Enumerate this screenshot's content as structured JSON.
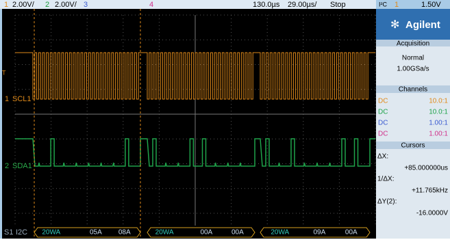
{
  "top_bar": {
    "ch1_number": "1",
    "ch1_scale": "2.00V/",
    "ch2_number": "2",
    "ch2_scale": "2.00V/",
    "ch3_number": "3",
    "ch4_number": "4",
    "time_delay": "130.0µs",
    "time_scale": "29.00µs/",
    "run_state": "Stop",
    "trigger_source": "I²C",
    "trigger_channel": "1",
    "trigger_level": "1.50V"
  },
  "screen": {
    "trigger_marker": "T",
    "scl_number": "1",
    "scl_label": "SCL1",
    "sda_number": "2",
    "sda_label": "SDA1",
    "serial_label": "S1",
    "protocol": "I2C",
    "packets": [
      [
        "20WA",
        "05A",
        "08A"
      ],
      [
        "20WA",
        "00A",
        "00A"
      ],
      [
        "20WA",
        "09A",
        "00A"
      ]
    ]
  },
  "side_panel": {
    "brand": "Agilent",
    "acquisition": {
      "title": "Acquisition",
      "mode": "Normal",
      "rate": "1.00GSa/s"
    },
    "channels": {
      "title": "Channels",
      "rows": [
        [
          "DC",
          "10.0:1"
        ],
        [
          "DC",
          "10.0:1"
        ],
        [
          "DC",
          "1.00:1"
        ],
        [
          "DC",
          "1.00:1"
        ]
      ]
    },
    "cursors": {
      "title": "Cursors",
      "dx_label": "ΔX:",
      "dx_value": "+85.000000us",
      "inv_dx_label": "1/ΔX:",
      "inv_dx_value": "+11.765kHz",
      "dy_label": "ΔY(2):",
      "dy_value": "-16.0000V"
    }
  }
}
